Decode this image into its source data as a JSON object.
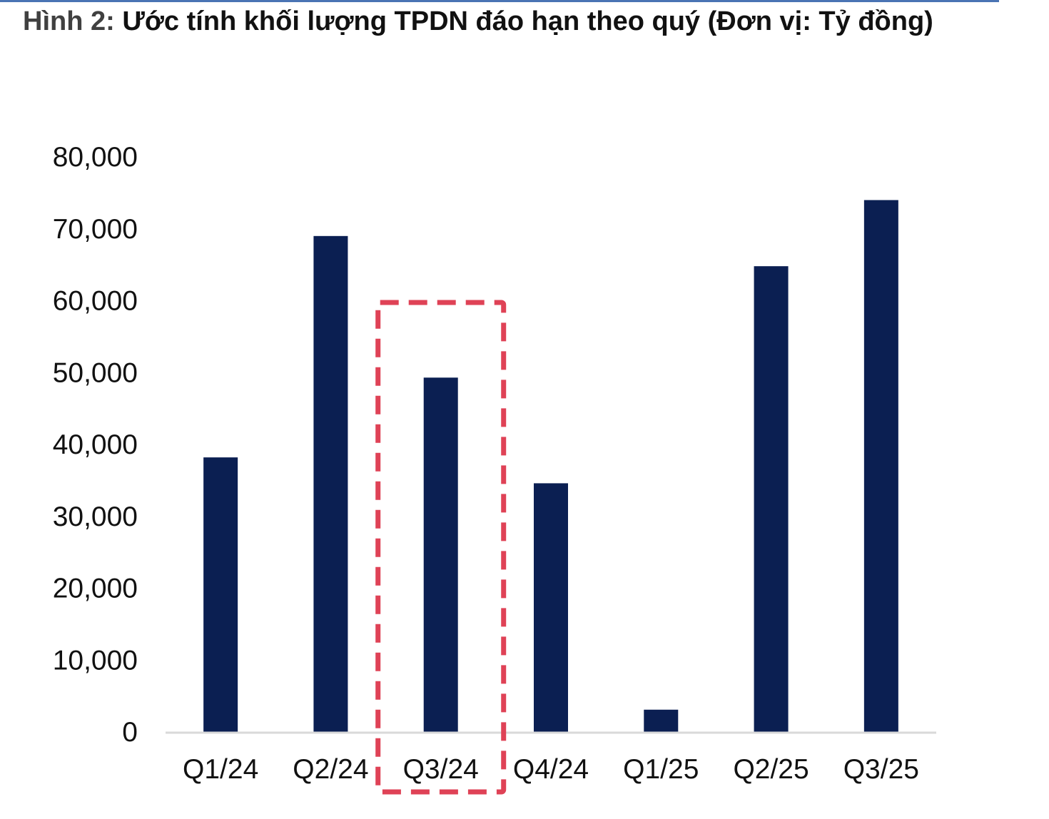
{
  "header": {
    "figure_prefix": "Hình 2:",
    "figure_title": "Ước tính khối lượng TPDN đáo hạn theo quý (Đơn vị: Tỷ đồng)"
  },
  "colors": {
    "bar": "#0b1f52",
    "highlight_box": "#df4256",
    "axis": "#d9d9d9",
    "top_rule": "#4a74b4"
  },
  "chart_data": {
    "type": "bar",
    "title": "Ước tính khối lượng TPDN đáo hạn theo quý (Đơn vị: Tỷ đồng)",
    "categories": [
      "Q1/24",
      "Q2/24",
      "Q3/24",
      "Q4/24",
      "Q1/25",
      "Q2/25",
      "Q3/25"
    ],
    "values": [
      38200,
      69000,
      49300,
      34600,
      3100,
      64800,
      74000
    ],
    "xlabel": "",
    "ylabel": "",
    "ylim": [
      0,
      80000
    ],
    "yticks": [
      0,
      10000,
      20000,
      30000,
      40000,
      50000,
      60000,
      70000,
      80000
    ],
    "ytick_labels": [
      "0",
      "10,000",
      "20,000",
      "30,000",
      "40,000",
      "50,000",
      "60,000",
      "70,000",
      "80,000"
    ],
    "grid": false,
    "legend": "none",
    "highlighted_category": "Q3/24",
    "highlight_style": "dashed-box"
  }
}
